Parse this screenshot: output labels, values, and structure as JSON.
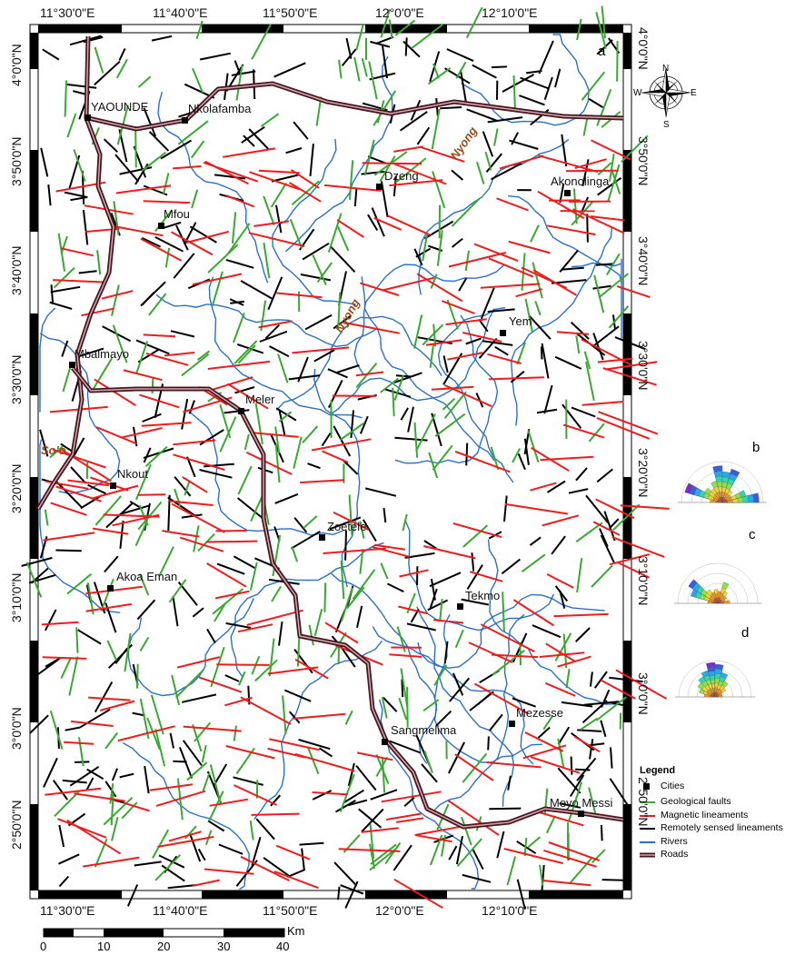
{
  "map": {
    "panel_label": "a",
    "top_labels": [
      "11°30'0\"E",
      "11°40'0\"E",
      "11°50'0\"E",
      "12°0'0\"E",
      "12°10'0\"E"
    ],
    "bottom_labels": [
      "11°30'0\"E",
      "11°40'0\"E",
      "11°50'0\"E",
      "12°0'0\"E",
      "12°10'0\"E"
    ],
    "left_labels": [
      "4°0'0\"N",
      "3°50'0\"N",
      "3°40'0\"N",
      "3°30'0\"N",
      "3°20'0\"N",
      "3°10'0\"N",
      "3°0'0\"N",
      "2°50'0\"N"
    ],
    "right_labels": [
      "4°0'0\"N",
      "3°50'0\"N",
      "3°40'0\"N",
      "3°30'0\"N",
      "3°20'0\"N",
      "3°10'0\"N",
      "3°0'0\"N",
      "2°50'0\"N"
    ],
    "cities": [
      "YAOUNDE",
      "Nkolafamba",
      "Dzeng",
      "Akonolinga",
      "Mfou",
      "Yem",
      "Mbalmayo",
      "Meler",
      "Nkout",
      "Zoetele",
      "Akoa Eman",
      "Tekmo",
      "Mezesse",
      "Sangmelima",
      "Meyo Messi"
    ],
    "rivers": [
      "Nyong",
      "Nyong",
      "So'o"
    ]
  },
  "compass": {
    "n": "N",
    "s": "S",
    "e": "E",
    "w": "W"
  },
  "rose_labels": [
    "b",
    "c",
    "d"
  ],
  "legend": {
    "title": "Legend",
    "items": [
      {
        "label": "Cities",
        "color": "#000000",
        "icon": "square-symbol"
      },
      {
        "label": "Geological faults",
        "color": "#3aa832",
        "icon": "line-symbol"
      },
      {
        "label": "Magnetic lineaments",
        "color": "#ee1c1c",
        "icon": "line-symbol"
      },
      {
        "label": "Remotely sensed lineaments",
        "color": "#000000",
        "icon": "line-symbol"
      },
      {
        "label": "Rivers",
        "color": "#2a6fc9",
        "icon": "line-symbol"
      },
      {
        "label": "Roads",
        "color": "#4a1420",
        "icon": "road-symbol"
      }
    ]
  },
  "scale_bar": {
    "unit": "Km",
    "ticks": [
      "0",
      "10",
      "20",
      "30",
      "40"
    ]
  }
}
